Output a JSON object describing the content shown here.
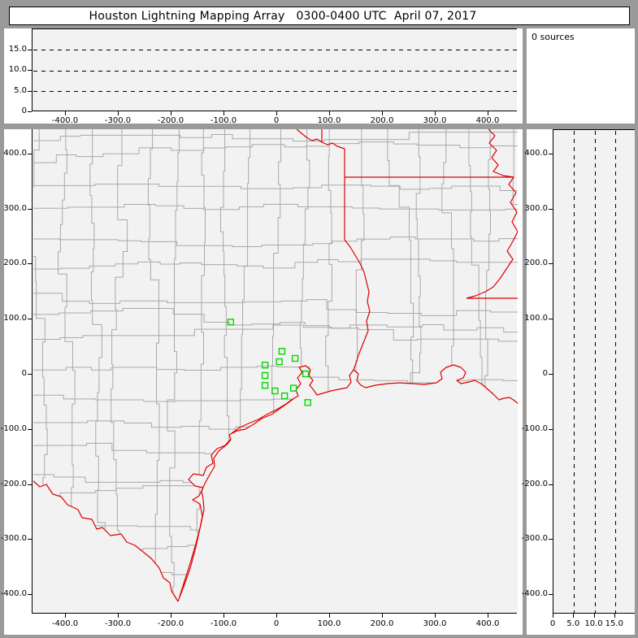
{
  "window": {
    "title": "Houston Lightning Mapping Array   0300-0400 UTC  April 07, 2017"
  },
  "sources_panel": {
    "label": "0 sources"
  },
  "colors": {
    "background": "#9a9a9a",
    "panel": "#ffffff",
    "plot_bg": "#f2f2f2",
    "county_line": "#a9a9a9",
    "state_line": "#dd0000",
    "station_marker": "#00d800",
    "axis": "#000000"
  },
  "axes": {
    "ew_km": {
      "labels": [
        "-400.0",
        "-300.0",
        "-200.0",
        "-100.0",
        "0",
        "100.0",
        "200.0",
        "300.0",
        "400.0"
      ],
      "values": [
        -400,
        -300,
        -200,
        -100,
        0,
        100,
        200,
        300,
        400
      ]
    },
    "ns_km": {
      "labels": [
        "400.0",
        "300.0",
        "200.0",
        "100.0",
        "0",
        "-100.0",
        "-200.0",
        "-300.0",
        "-400.0"
      ],
      "values": [
        400,
        300,
        200,
        100,
        0,
        -100,
        -200,
        -300,
        -400
      ]
    },
    "alt_top_km": {
      "labels": [
        "15.0",
        "10.0",
        "5.0",
        "0"
      ],
      "values": [
        15,
        10,
        5,
        0
      ]
    },
    "alt_right_km": {
      "labels": [
        "0",
        "5.0",
        "10.0",
        "15.0"
      ],
      "values": [
        0,
        5,
        10,
        15
      ]
    },
    "alt_grid_km": [
      5,
      10,
      15
    ]
  },
  "stations_km": [
    [
      -88,
      94
    ],
    [
      9,
      41
    ],
    [
      -23,
      16
    ],
    [
      4,
      22
    ],
    [
      34,
      28
    ],
    [
      -23,
      -3
    ],
    [
      54,
      0
    ],
    [
      -23,
      -21
    ],
    [
      -4,
      -31
    ],
    [
      14,
      -40
    ],
    [
      31,
      -26
    ],
    [
      58,
      -52
    ]
  ],
  "chart_data": [
    {
      "type": "scatter",
      "panel": "altitude-vs-east-west",
      "title": "",
      "xlabel": "East-West distance (km)",
      "ylabel": "Altitude (km)",
      "xlim": [
        -460,
        457
      ],
      "ylim": [
        0,
        20
      ],
      "x_ticks": [
        -400,
        -300,
        -200,
        -100,
        0,
        100,
        200,
        300,
        400
      ],
      "y_ticks": [
        0,
        5,
        10,
        15
      ],
      "dashed_gridlines_y": [
        5,
        10,
        15
      ],
      "points": [],
      "note": "no lightning sources plotted (0 sources)"
    },
    {
      "type": "scatter",
      "panel": "plan-view-map",
      "title": "",
      "xlabel": "East-West distance (km)",
      "ylabel": "North-South distance (km)",
      "xlim": [
        -463,
        455
      ],
      "ylim": [
        -435,
        444
      ],
      "x_ticks": [
        -400,
        -300,
        -200,
        -100,
        0,
        100,
        200,
        300,
        400
      ],
      "y_ticks": [
        -400,
        -300,
        -200,
        -100,
        0,
        100,
        200,
        300,
        400
      ],
      "points": [],
      "station_markers_km": [
        [
          -88,
          94
        ],
        [
          9,
          41
        ],
        [
          -23,
          16
        ],
        [
          4,
          22
        ],
        [
          34,
          28
        ],
        [
          -23,
          -3
        ],
        [
          54,
          0
        ],
        [
          -23,
          -21
        ],
        [
          -4,
          -31
        ],
        [
          14,
          -40
        ],
        [
          31,
          -26
        ],
        [
          58,
          -52
        ]
      ],
      "map_layers": [
        "county-boundaries-gray",
        "state-boundaries-red",
        "coastline-red",
        "rivers-red"
      ],
      "note": "map centered on Houston LMA network; green squares are LMA stations"
    },
    {
      "type": "scatter",
      "panel": "north-south-vs-altitude",
      "title": "",
      "xlabel": "Altitude (km)",
      "ylabel": "North-South distance (km)",
      "xlim": [
        0,
        20
      ],
      "ylim": [
        -435,
        444
      ],
      "x_ticks": [
        0,
        5,
        10,
        15
      ],
      "y_ticks": [
        -400,
        -300,
        -200,
        -100,
        0,
        100,
        200,
        300,
        400
      ],
      "dashed_gridlines_x": [
        5,
        10,
        15
      ],
      "points": [],
      "note": "no lightning sources plotted (0 sources)"
    }
  ]
}
